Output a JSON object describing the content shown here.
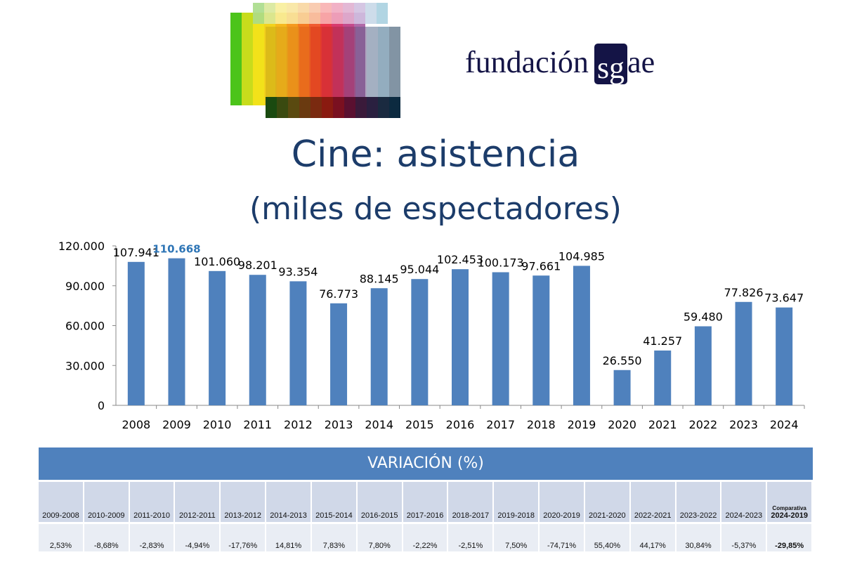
{
  "brand": {
    "name": "fundación",
    "box": "sg",
    "tail": "ae"
  },
  "title": "Cine: asistencia",
  "subtitle": "(miles de espectadores)",
  "chart_data": {
    "type": "bar",
    "title": "Cine: asistencia (miles de espectadores)",
    "categories": [
      "2008",
      "2009",
      "2010",
      "2011",
      "2012",
      "2013",
      "2014",
      "2015",
      "2016",
      "2017",
      "2018",
      "2019",
      "2020",
      "2021",
      "2022",
      "2023",
      "2024"
    ],
    "values": [
      107941,
      110668,
      101060,
      98201,
      93354,
      76773,
      88145,
      95044,
      102453,
      100173,
      97661,
      104985,
      26550,
      41257,
      59480,
      77826,
      73647
    ],
    "labels": [
      "107.941",
      "110.668",
      "101.060",
      "98.201",
      "93.354",
      "76.773",
      "88.145",
      "95.044",
      "102.453",
      "100.173",
      "97.661",
      "104.985",
      "26.550",
      "41.257",
      "59.480",
      "77.826",
      "73.647"
    ],
    "highlight_index": 1,
    "yticks": [
      "0",
      "30.000",
      "60.000",
      "90.000",
      "120.000"
    ],
    "ylim": [
      0,
      120000
    ],
    "bar_color": "#4f81bd",
    "highlight_color": "#2e75b6"
  },
  "variation": {
    "header": "VARIACIÓN (%)",
    "periods": [
      "2009-2008",
      "2010-2009",
      "2011-2010",
      "2012-2011",
      "2013-2012",
      "2014-2013",
      "2015-2014",
      "2016-2015",
      "2017-2016",
      "2018-2017",
      "2019-2018",
      "2020-2019",
      "2021-2020",
      "2022-2021",
      "2023-2022",
      "2024-2023",
      "2024-2019"
    ],
    "comparison_label": "Comparativa",
    "values": [
      "2,53%",
      "-8,68%",
      "-2,83%",
      "-4,94%",
      "-17,76%",
      "14,81%",
      "7,83%",
      "7,80%",
      "-2,22%",
      "-2,51%",
      "7,50%",
      "-74,71%",
      "55,40%",
      "44,17%",
      "30,84%",
      "-5,37%",
      "-29,85%"
    ]
  }
}
